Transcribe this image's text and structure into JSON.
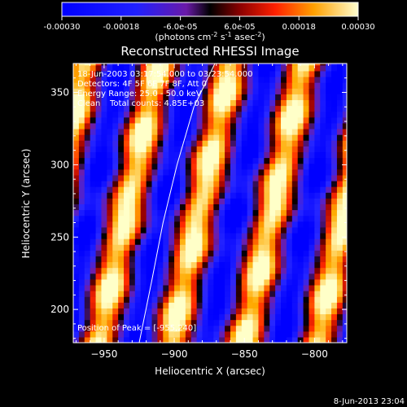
{
  "colorbar": {
    "ticks": [
      {
        "value": -0.0003,
        "label": "-0.00030"
      },
      {
        "value": -0.00018,
        "label": "-0.00018"
      },
      {
        "value": -6e-05,
        "label": "-6.0e-05"
      },
      {
        "value": 6e-05,
        "label": "6.0e-05"
      },
      {
        "value": 0.00018,
        "label": "0.00018"
      },
      {
        "value": 0.0003,
        "label": "0.00030"
      }
    ],
    "range": [
      -0.0003,
      0.0003
    ],
    "units_prefix": "(photons cm",
    "units_exp1": "-2",
    "units_mid": " s",
    "units_exp2": "-1",
    "units_mid2": " asec",
    "units_exp3": "-2",
    "units_suffix": ")"
  },
  "chart_data": {
    "type": "heatmap",
    "title": "Reconstructed RHESSI Image",
    "xlabel": "Heliocentric X (arcsec)",
    "ylabel": "Heliocentric Y (arcsec)",
    "xlim": [
      -972,
      -777
    ],
    "ylim": [
      177,
      370
    ],
    "xticks": [
      -950,
      -900,
      -850,
      -800
    ],
    "xtick_labels": [
      "−950",
      "−900",
      "−850",
      "−800"
    ],
    "yticks": [
      200,
      250,
      300,
      350
    ],
    "ytick_labels": [
      "200",
      "250",
      "300",
      "350"
    ],
    "annotations": {
      "line1": "18-Jun-2003 03:17:54.000 to 03:23:54.000",
      "line2": "Detectors: 4F 5F 6F 7F 8F, Att 0",
      "line3": "Energy Range: 25.0 - 50.0 keV",
      "line4_a": "Clean",
      "line4_b": "Total counts: 4.85E+03",
      "peak": "Position of Peak = [-955,240]"
    },
    "fringe_pattern": {
      "description_note": "",
      "stripe_direction_dx_per_dy": 0.22,
      "stripe_period_arcsec": 52,
      "bright_stripe_centers_at_y250": [
        -938,
        -893,
        -843,
        -795
      ]
    },
    "limb_curve": [
      [
        -925,
        177
      ],
      [
        -916,
        220
      ],
      [
        -908,
        260
      ],
      [
        -898,
        300
      ],
      [
        -886,
        340
      ],
      [
        -871,
        370
      ]
    ]
  },
  "timestamp": "8-Jun-2013 23:04"
}
